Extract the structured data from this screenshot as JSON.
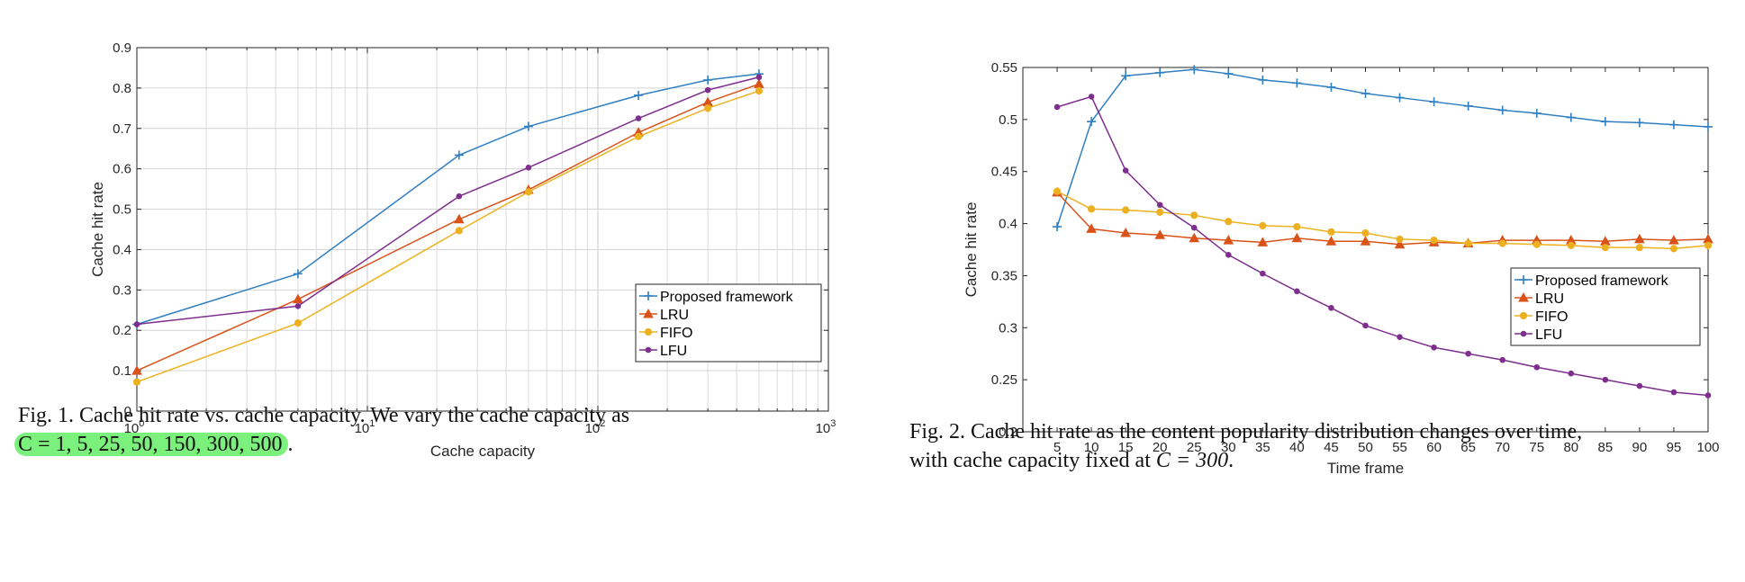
{
  "colors": {
    "proposed": "#2f7fc1",
    "lru": "#d95319",
    "fifo": "#edb120",
    "lfu": "#7e2f8e",
    "highlight": "#7cf07c"
  },
  "fig1": {
    "caption_line1": "Fig. 1.  Cache hit rate vs. cache capacity. We vary the cache capacity as",
    "caption_line2_math": "C = 1, 5, 25, 50, 150, 300, 500",
    "caption_line2_end": "."
  },
  "fig2": {
    "caption_line1": "Fig. 2.  Cache hit rate as the content popularity distribution changes over time,",
    "caption_line2_pre": "with cache capacity fixed at ",
    "caption_line2_math": "C = 300",
    "caption_line2_end": "."
  },
  "chart_data": [
    {
      "type": "line",
      "xscale": "log",
      "title": "",
      "xlabel": "Cache capacity",
      "ylabel": "Cache hit rate",
      "xlim": [
        1,
        1000
      ],
      "ylim": [
        0,
        0.9
      ],
      "grid": true,
      "legend_position": "right",
      "x": [
        1,
        5,
        25,
        50,
        150,
        300,
        500
      ],
      "xtick_labels": [
        "10",
        "10",
        "10",
        "10"
      ],
      "xtick_exponents": [
        "0",
        "1",
        "2",
        "3"
      ],
      "ytick_labels": [
        "0",
        "0.1",
        "0.2",
        "0.3",
        "0.4",
        "0.5",
        "0.6",
        "0.7",
        "0.8",
        "0.9"
      ],
      "ytick_values": [
        0,
        0.1,
        0.2,
        0.3,
        0.4,
        0.5,
        0.6,
        0.7,
        0.8,
        0.9
      ],
      "series": [
        {
          "name": "Proposed framework",
          "key": "proposed",
          "marker": "plus",
          "values": [
            0.215,
            0.34,
            0.634,
            0.705,
            0.782,
            0.82,
            0.835
          ]
        },
        {
          "name": "LRU",
          "key": "lru",
          "marker": "triangle",
          "values": [
            0.1,
            0.277,
            0.475,
            0.548,
            0.69,
            0.765,
            0.81
          ]
        },
        {
          "name": "FIFO",
          "key": "fifo",
          "marker": "circle",
          "values": [
            0.072,
            0.218,
            0.447,
            0.543,
            0.68,
            0.75,
            0.793
          ]
        },
        {
          "name": "LFU",
          "key": "lfu",
          "marker": "dot",
          "values": [
            0.215,
            0.26,
            0.532,
            0.603,
            0.725,
            0.795,
            0.827
          ]
        }
      ]
    },
    {
      "type": "line",
      "xscale": "linear",
      "title": "",
      "xlabel": "Time frame",
      "ylabel": "Cache hit rate",
      "xlim": [
        0,
        100
      ],
      "ylim": [
        0.2,
        0.55
      ],
      "grid": false,
      "legend_position": "right",
      "x": [
        5,
        10,
        15,
        20,
        25,
        30,
        35,
        40,
        45,
        50,
        55,
        60,
        65,
        70,
        75,
        80,
        85,
        90,
        95,
        100
      ],
      "xtick_labels": [
        "5",
        "10",
        "15",
        "20",
        "25",
        "30",
        "35",
        "40",
        "45",
        "50",
        "55",
        "60",
        "65",
        "70",
        "75",
        "80",
        "85",
        "90",
        "95",
        "100"
      ],
      "ytick_labels": [
        "0.2",
        "0.25",
        "0.3",
        "0.35",
        "0.4",
        "0.45",
        "0.5",
        "0.55"
      ],
      "ytick_values": [
        0.2,
        0.25,
        0.3,
        0.35,
        0.4,
        0.45,
        0.5,
        0.55
      ],
      "series": [
        {
          "name": "Proposed framework",
          "key": "proposed",
          "marker": "plus",
          "values": [
            0.397,
            0.498,
            0.542,
            0.545,
            0.548,
            0.544,
            0.538,
            0.535,
            0.531,
            0.525,
            0.521,
            0.517,
            0.513,
            0.509,
            0.506,
            0.502,
            0.498,
            0.497,
            0.495,
            0.493
          ]
        },
        {
          "name": "LRU",
          "key": "lru",
          "marker": "triangle",
          "values": [
            0.43,
            0.395,
            0.391,
            0.389,
            0.386,
            0.384,
            0.382,
            0.386,
            0.383,
            0.383,
            0.38,
            0.382,
            0.381,
            0.384,
            0.384,
            0.384,
            0.383,
            0.385,
            0.384,
            0.385
          ]
        },
        {
          "name": "FIFO",
          "key": "fifo",
          "marker": "circle",
          "values": [
            0.431,
            0.414,
            0.413,
            0.411,
            0.408,
            0.402,
            0.398,
            0.397,
            0.392,
            0.391,
            0.385,
            0.384,
            0.381,
            0.381,
            0.38,
            0.379,
            0.377,
            0.377,
            0.376,
            0.379
          ]
        },
        {
          "name": "LFU",
          "key": "lfu",
          "marker": "dot",
          "values": [
            0.512,
            0.522,
            0.451,
            0.418,
            0.396,
            0.37,
            0.352,
            0.335,
            0.319,
            0.302,
            0.291,
            0.281,
            0.275,
            0.269,
            0.262,
            0.256,
            0.25,
            0.244,
            0.238,
            0.235
          ]
        }
      ]
    }
  ]
}
